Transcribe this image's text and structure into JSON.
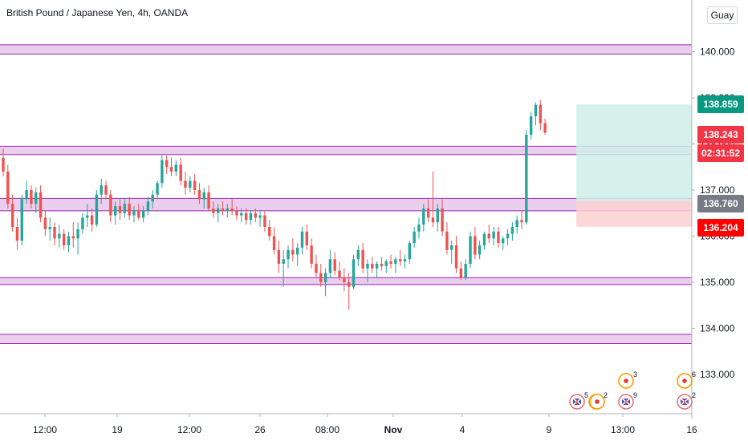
{
  "symbol_title": "British Pound / Japanese Yen, 4h, OANDA",
  "user_badge": "Guay",
  "colors": {
    "up": "#26a69a",
    "down": "#ef5350",
    "zone_fill": "#e1bee7",
    "zone_line": "#9c27b0",
    "target_fill": "#cfeee8",
    "stop_fill": "#fbd0d0",
    "price_tag": "#089981",
    "last_tag": "#f23645",
    "entry_tag": "#787b86",
    "stop_tag": "#ff0000"
  },
  "chart_data": {
    "type": "candlestick",
    "instrument": "British Pound / Japanese Yen",
    "interval": "4h",
    "source": "OANDA",
    "ylim": [
      132.2,
      141.2
    ],
    "y_ticks": [
      "140.000",
      "139.000",
      "138.000",
      "137.000",
      "136.000",
      "135.000",
      "134.000",
      "133.000"
    ],
    "x_ticks": [
      "12:00",
      "19",
      "12:00",
      "26",
      "08:00",
      "Nov",
      "4",
      "9",
      "13:00",
      "16"
    ],
    "zones": [
      {
        "low": 139.95,
        "high": 140.15
      },
      {
        "low": 137.77,
        "high": 137.95
      },
      {
        "low": 136.55,
        "high": 136.82
      },
      {
        "low": 134.95,
        "high": 135.1
      },
      {
        "low": 133.67,
        "high": 133.87
      }
    ],
    "position": {
      "target": 138.859,
      "entry": 136.76,
      "stop": 136.204
    },
    "price_tags": [
      {
        "label": "138.859",
        "value": 138.859,
        "kind": "target"
      },
      {
        "label": "138.243",
        "value": 138.243,
        "kind": "last"
      },
      {
        "label": "02:31:52",
        "value": 137.89,
        "kind": "countdown"
      },
      {
        "label": "136.760",
        "value": 136.76,
        "kind": "entry"
      },
      {
        "label": "136.204",
        "value": 136.204,
        "kind": "stop"
      }
    ],
    "series": [
      {
        "name": "",
        "ohlc": [
          [
            137.7,
            137.9,
            137.3,
            137.4
          ],
          [
            137.4,
            137.55,
            136.6,
            136.7
          ],
          [
            136.7,
            136.9,
            136.1,
            136.2
          ],
          [
            136.2,
            136.4,
            135.7,
            135.9
          ],
          [
            135.9,
            136.9,
            135.8,
            136.8
          ],
          [
            136.8,
            137.2,
            136.7,
            137.0
          ],
          [
            137.0,
            137.1,
            136.6,
            136.7
          ],
          [
            136.7,
            137.05,
            136.5,
            136.95
          ],
          [
            136.95,
            137.1,
            136.3,
            136.4
          ],
          [
            136.4,
            136.55,
            136.0,
            136.15
          ],
          [
            136.15,
            136.4,
            135.9,
            136.2
          ],
          [
            136.2,
            136.3,
            135.8,
            135.95
          ],
          [
            135.95,
            136.25,
            135.75,
            136.05
          ],
          [
            136.05,
            136.15,
            135.7,
            135.8
          ],
          [
            135.8,
            136.1,
            135.65,
            136.0
          ],
          [
            136.0,
            136.3,
            135.75,
            135.95
          ],
          [
            135.95,
            136.3,
            135.6,
            136.15
          ],
          [
            136.15,
            136.5,
            136.05,
            136.4
          ],
          [
            136.4,
            136.7,
            136.2,
            136.45
          ],
          [
            136.45,
            136.6,
            136.1,
            136.25
          ],
          [
            136.25,
            137.0,
            136.2,
            136.9
          ],
          [
            136.9,
            137.25,
            136.7,
            137.1
          ],
          [
            137.1,
            137.2,
            136.8,
            136.9
          ],
          [
            136.9,
            137.0,
            136.3,
            136.45
          ],
          [
            136.45,
            136.75,
            136.25,
            136.65
          ],
          [
            136.65,
            136.8,
            136.35,
            136.5
          ],
          [
            136.5,
            136.8,
            136.4,
            136.7
          ],
          [
            136.7,
            136.85,
            136.35,
            136.45
          ],
          [
            136.45,
            136.65,
            136.3,
            136.55
          ],
          [
            136.55,
            136.7,
            136.35,
            136.4
          ],
          [
            136.4,
            136.65,
            136.3,
            136.55
          ],
          [
            136.55,
            136.85,
            136.45,
            136.75
          ],
          [
            136.75,
            137.0,
            136.6,
            136.9
          ],
          [
            136.9,
            137.2,
            136.8,
            137.15
          ],
          [
            137.15,
            137.75,
            137.05,
            137.65
          ],
          [
            137.65,
            137.75,
            137.35,
            137.5
          ],
          [
            137.5,
            137.7,
            137.3,
            137.4
          ],
          [
            137.4,
            137.65,
            137.3,
            137.55
          ],
          [
            137.55,
            137.7,
            137.1,
            137.2
          ],
          [
            137.2,
            137.4,
            136.9,
            137.05
          ],
          [
            137.05,
            137.3,
            136.95,
            137.2
          ],
          [
            137.2,
            137.35,
            136.9,
            137.0
          ],
          [
            137.0,
            137.15,
            136.7,
            136.8
          ],
          [
            136.8,
            137.05,
            136.6,
            136.95
          ],
          [
            136.95,
            137.1,
            136.55,
            136.6
          ],
          [
            136.6,
            136.75,
            136.4,
            136.5
          ],
          [
            136.5,
            136.7,
            136.3,
            136.6
          ],
          [
            136.6,
            136.75,
            136.45,
            136.55
          ],
          [
            136.55,
            136.7,
            136.4,
            136.6
          ],
          [
            136.6,
            136.8,
            136.45,
            136.55
          ],
          [
            136.55,
            136.65,
            136.35,
            136.45
          ],
          [
            136.45,
            136.6,
            136.3,
            136.5
          ],
          [
            136.5,
            136.6,
            136.25,
            136.35
          ],
          [
            136.35,
            136.55,
            136.25,
            136.5
          ],
          [
            136.5,
            136.6,
            136.3,
            136.4
          ],
          [
            136.4,
            136.55,
            136.2,
            136.45
          ],
          [
            136.45,
            136.55,
            136.1,
            136.2
          ],
          [
            136.2,
            136.35,
            135.9,
            136.0
          ],
          [
            136.0,
            136.2,
            135.6,
            135.7
          ],
          [
            135.7,
            135.9,
            135.2,
            135.4
          ],
          [
            135.4,
            135.7,
            134.9,
            135.5
          ],
          [
            135.5,
            135.8,
            135.3,
            135.7
          ],
          [
            135.7,
            135.95,
            135.45,
            135.6
          ],
          [
            135.6,
            135.85,
            135.35,
            135.75
          ],
          [
            135.75,
            136.2,
            135.6,
            136.1
          ],
          [
            136.1,
            136.25,
            135.7,
            135.8
          ],
          [
            135.8,
            135.95,
            135.3,
            135.4
          ],
          [
            135.4,
            135.6,
            135.1,
            135.2
          ],
          [
            135.2,
            135.4,
            134.9,
            135.0
          ],
          [
            135.0,
            135.3,
            134.7,
            135.2
          ],
          [
            135.2,
            135.7,
            135.1,
            135.5
          ],
          [
            135.5,
            135.65,
            135.15,
            135.25
          ],
          [
            135.25,
            135.45,
            135.05,
            135.1
          ],
          [
            135.1,
            135.3,
            134.8,
            135.0
          ],
          [
            135.0,
            135.2,
            134.4,
            134.9
          ],
          [
            134.9,
            135.6,
            134.85,
            135.5
          ],
          [
            135.5,
            135.8,
            135.35,
            135.7
          ],
          [
            135.7,
            135.85,
            135.2,
            135.3
          ],
          [
            135.3,
            135.5,
            135.0,
            135.4
          ],
          [
            135.4,
            135.55,
            135.2,
            135.3
          ],
          [
            135.3,
            135.45,
            135.1,
            135.4
          ],
          [
            135.4,
            135.55,
            135.25,
            135.35
          ],
          [
            135.35,
            135.5,
            135.2,
            135.45
          ],
          [
            135.45,
            135.6,
            135.3,
            135.4
          ],
          [
            135.4,
            135.55,
            135.2,
            135.5
          ],
          [
            135.5,
            135.7,
            135.35,
            135.45
          ],
          [
            135.45,
            135.6,
            135.3,
            135.5
          ],
          [
            135.5,
            135.9,
            135.4,
            135.85
          ],
          [
            135.85,
            136.2,
            135.75,
            136.1
          ],
          [
            136.1,
            136.4,
            135.95,
            136.25
          ],
          [
            136.25,
            136.7,
            136.1,
            136.6
          ],
          [
            136.6,
            136.8,
            136.3,
            136.4
          ],
          [
            136.4,
            137.4,
            136.2,
            136.3
          ],
          [
            136.3,
            136.7,
            136.1,
            136.6
          ],
          [
            136.6,
            136.8,
            136.0,
            136.1
          ],
          [
            136.1,
            136.3,
            135.6,
            135.7
          ],
          [
            135.7,
            135.9,
            135.4,
            135.8
          ],
          [
            135.8,
            136.0,
            135.2,
            135.3
          ],
          [
            135.3,
            135.45,
            135.05,
            135.1
          ],
          [
            135.1,
            135.5,
            135.05,
            135.4
          ],
          [
            135.4,
            136.1,
            135.3,
            136.0
          ],
          [
            136.0,
            136.2,
            135.5,
            135.6
          ],
          [
            135.6,
            135.9,
            135.5,
            135.8
          ],
          [
            135.8,
            136.1,
            135.7,
            136.05
          ],
          [
            136.05,
            136.25,
            135.85,
            135.95
          ],
          [
            135.95,
            136.2,
            135.8,
            136.1
          ],
          [
            136.1,
            136.2,
            135.75,
            135.85
          ],
          [
            135.85,
            136.0,
            135.7,
            135.95
          ],
          [
            135.95,
            136.15,
            135.8,
            136.05
          ],
          [
            136.05,
            136.3,
            135.9,
            136.2
          ],
          [
            136.2,
            136.45,
            136.05,
            136.35
          ],
          [
            136.35,
            136.55,
            136.15,
            136.3
          ],
          [
            136.3,
            138.3,
            136.25,
            138.2
          ],
          [
            138.2,
            138.7,
            138.1,
            138.6
          ],
          [
            138.6,
            138.9,
            138.4,
            138.85
          ],
          [
            138.85,
            138.95,
            138.3,
            138.45
          ],
          [
            138.45,
            138.55,
            138.2,
            138.243
          ]
        ]
      }
    ],
    "event_markers": [
      {
        "count": "5",
        "kind": "flag"
      },
      {
        "count": "2",
        "kind": "dot"
      },
      {
        "count": "",
        "kind": "dot"
      },
      {
        "count": "3",
        "kind": "dot"
      },
      {
        "count": "9",
        "kind": "flag"
      },
      {
        "count": "6",
        "kind": "dot"
      },
      {
        "count": "2",
        "kind": "flag"
      }
    ]
  }
}
